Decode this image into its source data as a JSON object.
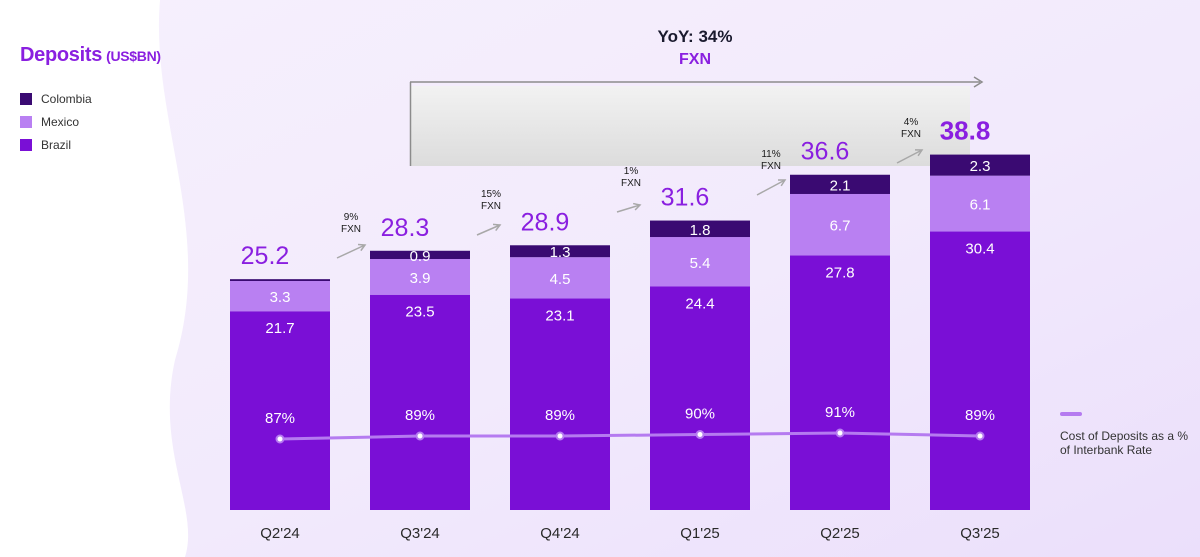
{
  "title": "Deposits",
  "unit": "(US$BN)",
  "legend": [
    {
      "name": "Colombia",
      "color": "#3a0a72"
    },
    {
      "name": "Mexico",
      "color": "#b980f2"
    },
    {
      "name": "Brazil",
      "color": "#7a0fd6"
    }
  ],
  "yoy": {
    "text": "YoY: 34%",
    "sub": "FXN"
  },
  "line_legend": {
    "label": "Cost of Deposits as a % of Interbank Rate",
    "color": "#b57bf0"
  },
  "colors": {
    "accent": "#8a1fe0",
    "arrow": "#a8a8a8",
    "total_purple": "#8a1fe0"
  },
  "chart_data": {
    "type": "bar",
    "stacked": true,
    "categories": [
      "Q2'24",
      "Q3'24",
      "Q4'24",
      "Q1'25",
      "Q2'25",
      "Q3'25"
    ],
    "series": [
      {
        "name": "Brazil",
        "values": [
          21.7,
          23.5,
          23.1,
          24.4,
          27.8,
          30.4
        ]
      },
      {
        "name": "Mexico",
        "values": [
          3.3,
          3.9,
          4.5,
          5.4,
          6.7,
          6.1
        ]
      },
      {
        "name": "Colombia",
        "values": [
          0.2,
          0.9,
          1.3,
          1.8,
          2.1,
          2.3
        ]
      }
    ],
    "totals": [
      "25.2",
      "28.3",
      "28.9",
      "31.6",
      "36.6",
      "38.8"
    ],
    "segment_labels": {
      "Brazil": [
        "21.7",
        "23.5",
        "23.1",
        "24.4",
        "27.8",
        "30.4"
      ],
      "Mexico": [
        "3.3",
        "3.9",
        "4.5",
        "5.4",
        "6.7",
        "6.1"
      ],
      "Colombia": [
        "",
        "0.9",
        "1.3",
        "1.8",
        "2.1",
        "2.3"
      ]
    },
    "growth_labels": [
      {
        "pct": "9%",
        "sub": "FXN"
      },
      {
        "pct": "15%",
        "sub": "FXN"
      },
      {
        "pct": "1%",
        "sub": "FXN"
      },
      {
        "pct": "11%",
        "sub": "FXN"
      },
      {
        "pct": "4%",
        "sub": "FXN"
      }
    ],
    "line_series": {
      "name": "Cost of Deposits as a % of Interbank Rate",
      "values": [
        87,
        89,
        89,
        90,
        91,
        89
      ],
      "labels": [
        "87%",
        "89%",
        "89%",
        "90%",
        "91%",
        "89%"
      ]
    },
    "ylim": [
      0,
      40
    ]
  }
}
